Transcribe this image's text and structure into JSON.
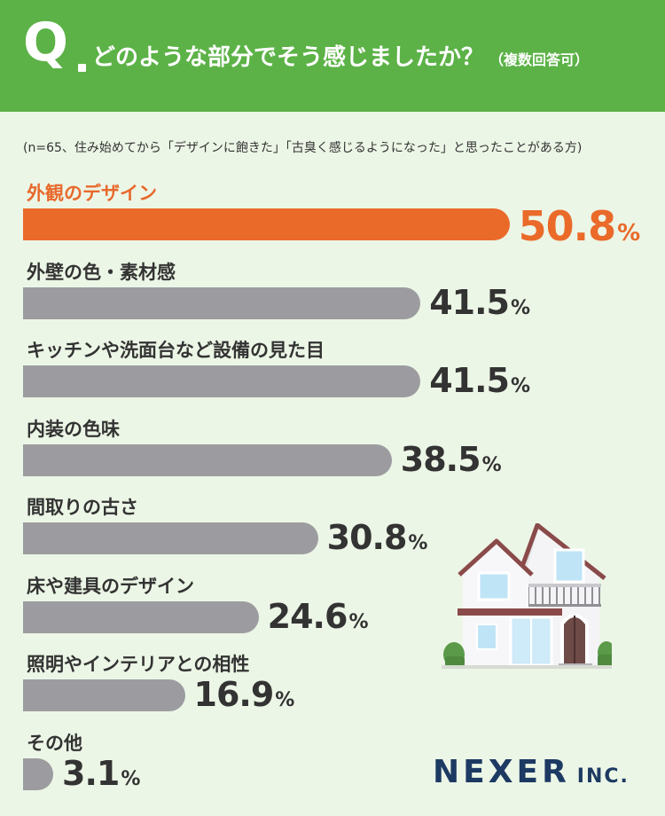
{
  "header": {
    "q_letter": "Q",
    "question": "どのような部分でそう感じましたか？",
    "sub": "（複数回答可）"
  },
  "note": "(n=65、住み始めてから「デザインに飽きた」「古臭く感じるようになった」と思ったことがある方)",
  "colors": {
    "header_green": "#5cb247",
    "background": "#ecf6e6",
    "highlight_orange": "#ea6a2a",
    "bar_gray": "#9c9ca0",
    "logo_navy": "#1d3a63"
  },
  "chart_data": {
    "type": "bar",
    "orientation": "horizontal",
    "unit": "%",
    "xlim": [
      0,
      100
    ],
    "categories": [
      "外観のデザイン",
      "外壁の色・素材感",
      "キッチンや洗面台など設備の見た目",
      "内装の色味",
      "間取りの古さ",
      "床や建具のデザイン",
      "照明やインテリアとの相性",
      "その他"
    ],
    "values": [
      50.8,
      41.5,
      41.5,
      38.5,
      30.8,
      24.6,
      16.9,
      3.1
    ],
    "value_labels": [
      "50.8",
      "41.5",
      "41.5",
      "38.5",
      "30.8",
      "24.6",
      "16.9",
      "3.1"
    ],
    "highlight_index": 0
  },
  "logo": {
    "main": "NEXER",
    "suffix": "INC."
  },
  "illustration": {
    "icon": "house-icon"
  }
}
